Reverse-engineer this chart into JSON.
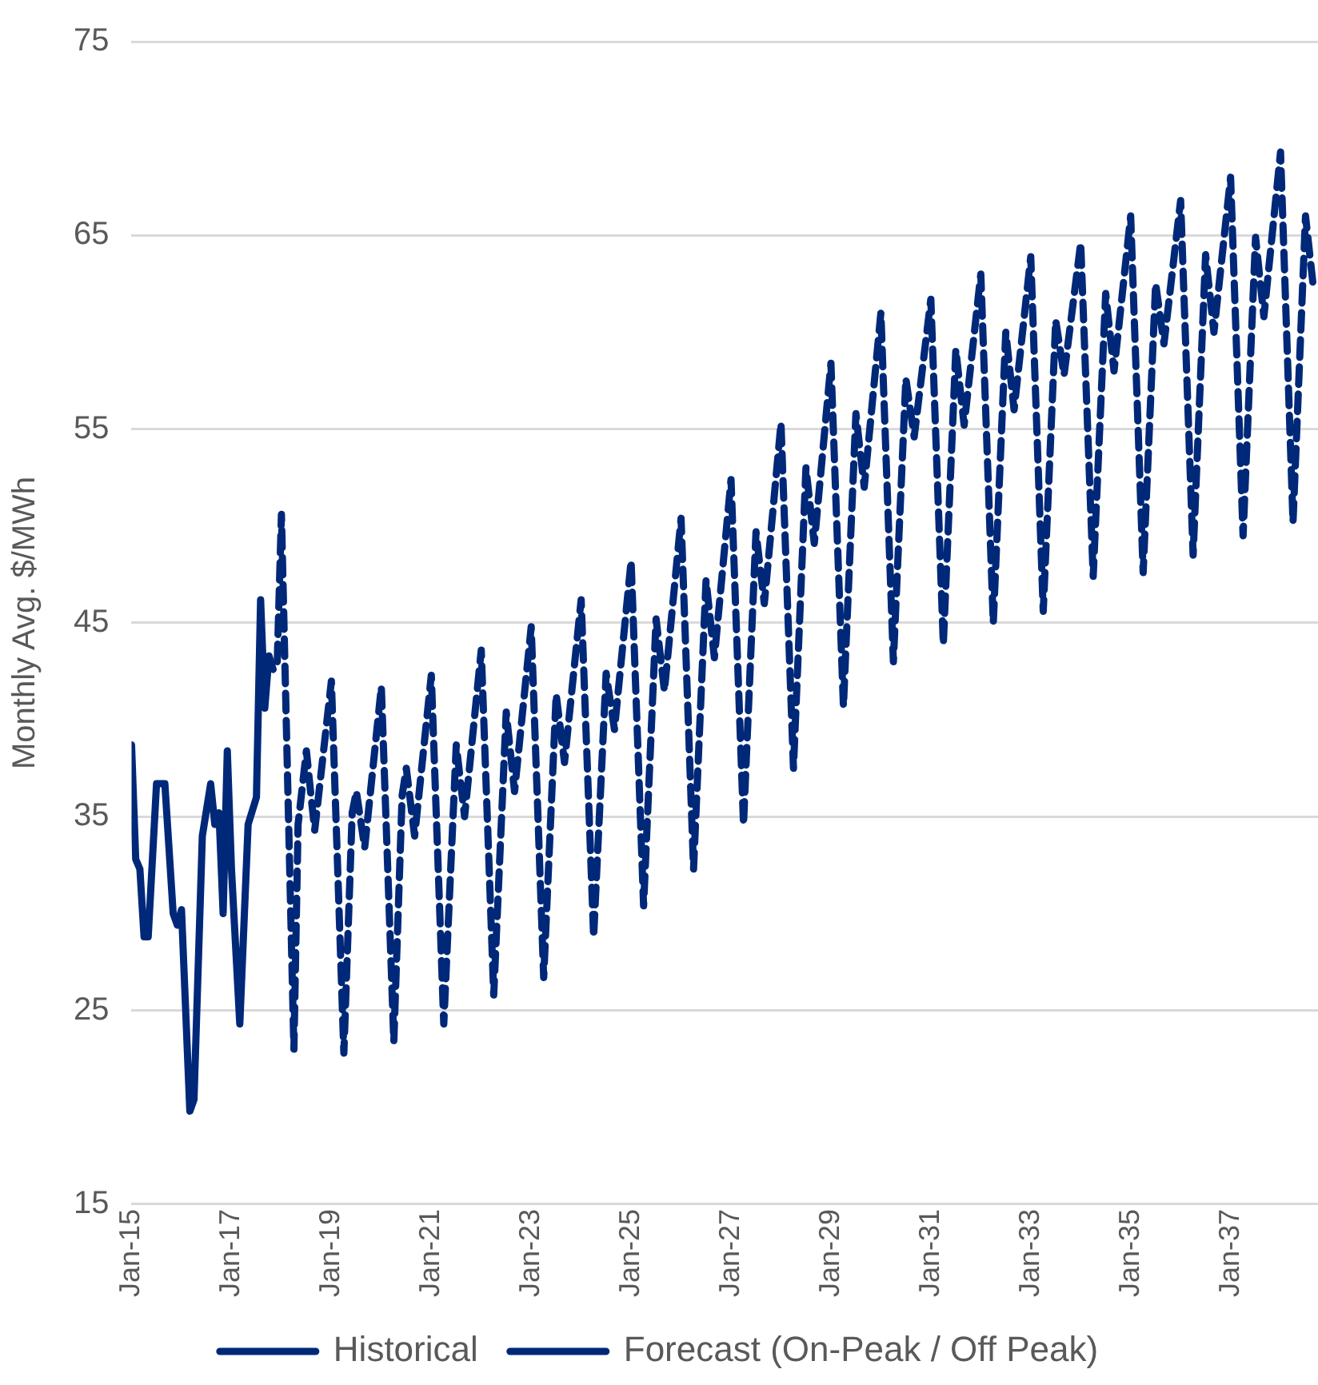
{
  "chart_data": {
    "type": "line",
    "ylabel": "Monthly Avg. $/MWh",
    "xlim": [
      "2015-01",
      "2038-10"
    ],
    "xticks": [
      {
        "value": "2015-01",
        "label": "Jan-15"
      },
      {
        "value": "2017-01",
        "label": "Jan-17"
      },
      {
        "value": "2019-01",
        "label": "Jan-19"
      },
      {
        "value": "2021-01",
        "label": "Jan-21"
      },
      {
        "value": "2023-01",
        "label": "Jan-23"
      },
      {
        "value": "2025-01",
        "label": "Jan-25"
      },
      {
        "value": "2027-01",
        "label": "Jan-27"
      },
      {
        "value": "2029-01",
        "label": "Jan-29"
      },
      {
        "value": "2031-01",
        "label": "Jan-31"
      },
      {
        "value": "2033-01",
        "label": "Jan-33"
      },
      {
        "value": "2035-01",
        "label": "Jan-35"
      },
      {
        "value": "2037-01",
        "label": "Jan-37"
      }
    ],
    "ylim": [
      15,
      75
    ],
    "yticks": [
      15,
      25,
      35,
      45,
      55,
      65,
      75
    ],
    "grid": "y",
    "legend": "bottom",
    "marker": "none",
    "series": [
      {
        "name": "Historical",
        "color": "#002878",
        "line_style": "solid",
        "x": [
          "2015-01",
          "2015-02",
          "2015-03",
          "2015-04",
          "2015-05",
          "2015-07",
          "2015-09",
          "2015-11",
          "2015-12",
          "2016-01",
          "2016-03",
          "2016-04",
          "2016-06",
          "2016-08",
          "2016-09",
          "2016-10",
          "2016-11",
          "2016-12",
          "2017-01",
          "2017-03",
          "2017-05",
          "2017-07",
          "2017-08",
          "2017-09",
          "2017-10",
          "2017-11"
        ],
        "values": [
          38.7,
          32.8,
          32.3,
          28.8,
          28.8,
          36.7,
          36.7,
          30.0,
          29.4,
          30.2,
          19.8,
          20.4,
          34.0,
          36.7,
          34.6,
          35.2,
          30.0,
          38.4,
          32.3,
          24.3,
          34.6,
          36.0,
          46.2,
          40.6,
          43.3,
          42.6
        ]
      },
      {
        "name": "Forecast (On-Peak / Off Peak)",
        "color": "#002878",
        "line_style": "dashed",
        "x": [
          "2017-12",
          "2018-01",
          "2018-04",
          "2018-05",
          "2018-07",
          "2018-08",
          "2018-09",
          "2019-01",
          "2019-04",
          "2019-06",
          "2019-07",
          "2019-09",
          "2020-01",
          "2020-04",
          "2020-06",
          "2020-07",
          "2020-09",
          "2021-01",
          "2021-04",
          "2021-07",
          "2021-09",
          "2022-01",
          "2022-04",
          "2022-07",
          "2022-09",
          "2023-01",
          "2023-04",
          "2023-07",
          "2023-09",
          "2024-01",
          "2024-04",
          "2024-07",
          "2024-09",
          "2025-01",
          "2025-04",
          "2025-07",
          "2025-09",
          "2026-01",
          "2026-04",
          "2026-07",
          "2026-09",
          "2027-01",
          "2027-04",
          "2027-07",
          "2027-09",
          "2028-01",
          "2028-04",
          "2028-07",
          "2028-09",
          "2029-01",
          "2029-04",
          "2029-07",
          "2029-09",
          "2030-01",
          "2030-04",
          "2030-07",
          "2030-09",
          "2031-01",
          "2031-04",
          "2031-07",
          "2031-09",
          "2032-01",
          "2032-04",
          "2032-07",
          "2032-09",
          "2033-01",
          "2033-04",
          "2033-07",
          "2033-09",
          "2034-01",
          "2034-04",
          "2034-07",
          "2034-09",
          "2035-01",
          "2035-04",
          "2035-07",
          "2035-09",
          "2036-01",
          "2036-04",
          "2036-07",
          "2036-09",
          "2037-01",
          "2037-04",
          "2037-07",
          "2037-09",
          "2038-01",
          "2038-04",
          "2038-07",
          "2038-09"
        ],
        "values": [
          43.0,
          50.6,
          23.0,
          34.6,
          38.4,
          36.3,
          34.3,
          42.0,
          22.8,
          35.2,
          36.3,
          33.4,
          41.7,
          23.4,
          36.1,
          37.5,
          34.0,
          42.3,
          24.3,
          38.7,
          35.0,
          43.6,
          25.8,
          40.4,
          36.3,
          44.8,
          26.7,
          41.3,
          37.8,
          46.2,
          28.8,
          42.4,
          39.5,
          48.2,
          30.4,
          45.2,
          41.5,
          50.4,
          32.3,
          47.2,
          43.2,
          52.4,
          34.6,
          49.7,
          46.0,
          55.3,
          37.5,
          53.0,
          49.1,
          58.4,
          40.7,
          55.8,
          52.0,
          61.0,
          43.0,
          57.6,
          54.6,
          61.7,
          43.9,
          59.1,
          55.2,
          63.0,
          45.0,
          60.0,
          56.0,
          63.9,
          45.6,
          60.6,
          57.8,
          64.6,
          47.4,
          62.0,
          58.0,
          66.0,
          47.6,
          62.5,
          59.4,
          66.8,
          48.5,
          64.0,
          60.0,
          68.0,
          49.5,
          64.9,
          60.8,
          69.3,
          50.2,
          66.0,
          62.1
        ]
      }
    ]
  }
}
